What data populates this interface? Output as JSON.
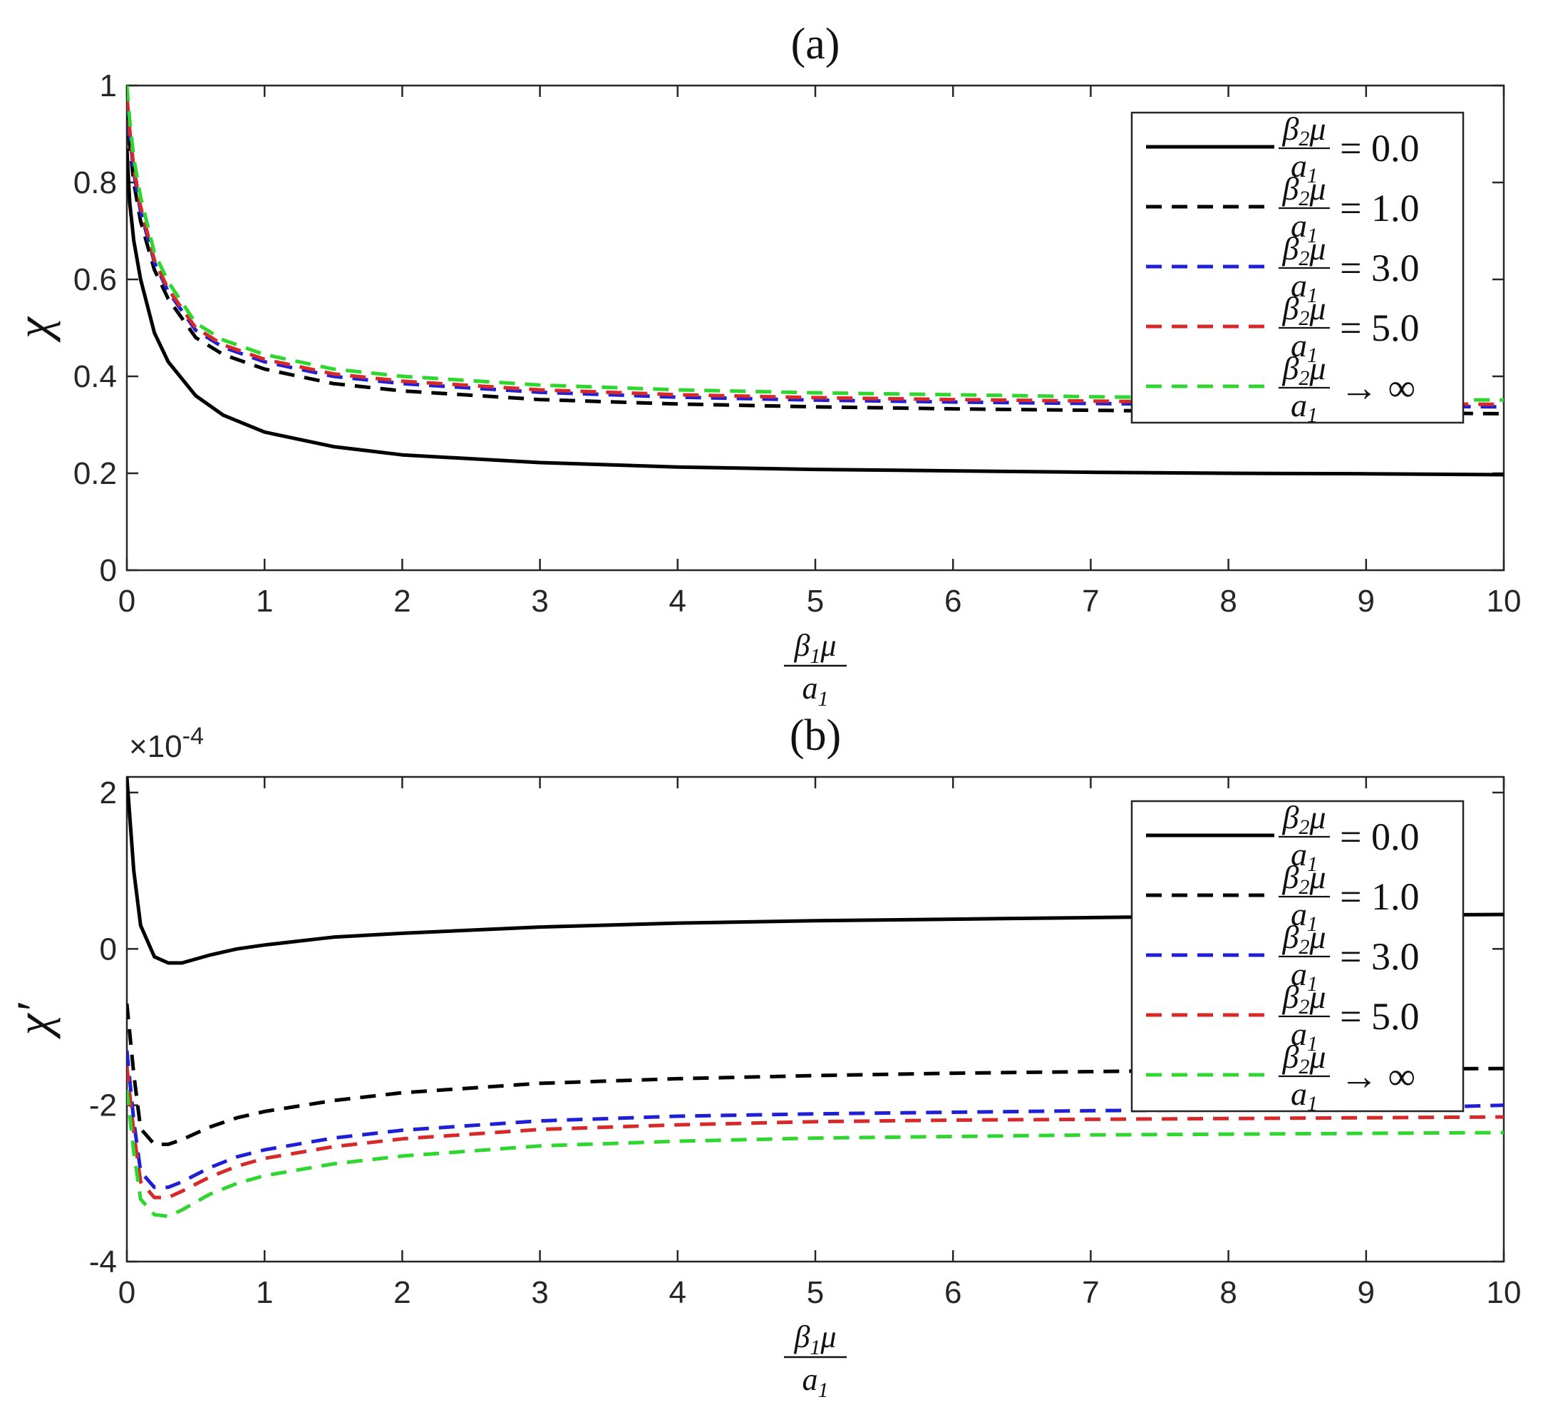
{
  "chart_data": [
    {
      "type": "line",
      "title": "(a)",
      "xlabel": "β1μ/a1",
      "xlabel_num": "β",
      "xlabel_num_sub": "1",
      "xlabel_num_rest": "μ",
      "xlabel_den": "a",
      "xlabel_den_sub": "1",
      "ylabel": "χ",
      "xlim": [
        0,
        10
      ],
      "ylim": [
        0,
        1
      ],
      "xticks": [
        "0",
        "1",
        "2",
        "3",
        "4",
        "5",
        "6",
        "7",
        "8",
        "9",
        "10"
      ],
      "yticks": [
        "0",
        "0.2",
        "0.4",
        "0.6",
        "0.8",
        "1"
      ],
      "exponent_label": "",
      "legend_position": "top-right",
      "series": [
        {
          "name": "β2μ/a1 = 0.0",
          "value_label": "= 0.0",
          "color": "#000000",
          "dash": "solid",
          "x": [
            0,
            0.02,
            0.05,
            0.1,
            0.2,
            0.3,
            0.5,
            0.7,
            1,
            1.5,
            2,
            3,
            4,
            5,
            6,
            7,
            8,
            9,
            10
          ],
          "y": [
            0.87,
            0.76,
            0.68,
            0.6,
            0.49,
            0.43,
            0.36,
            0.32,
            0.285,
            0.255,
            0.238,
            0.222,
            0.213,
            0.208,
            0.205,
            0.202,
            0.2,
            0.199,
            0.197
          ]
        },
        {
          "name": "β2μ/a1 = 1.0",
          "value_label": "= 1.0",
          "color": "#000000",
          "dash": "dashed",
          "x": [
            0,
            0.02,
            0.05,
            0.1,
            0.2,
            0.3,
            0.5,
            0.7,
            1,
            1.5,
            2,
            3,
            4,
            5,
            6,
            7,
            8,
            9,
            10
          ],
          "y": [
            0.95,
            0.88,
            0.8,
            0.72,
            0.62,
            0.56,
            0.48,
            0.445,
            0.415,
            0.385,
            0.37,
            0.352,
            0.343,
            0.337,
            0.333,
            0.33,
            0.327,
            0.325,
            0.323
          ]
        },
        {
          "name": "β2μ/a1 = 3.0",
          "value_label": "= 3.0",
          "color": "#1f1fd6",
          "dash": "dashed",
          "x": [
            0,
            0.02,
            0.05,
            0.1,
            0.2,
            0.3,
            0.5,
            0.7,
            1,
            1.5,
            2,
            3,
            4,
            5,
            6,
            7,
            8,
            9,
            10
          ],
          "y": [
            0.97,
            0.9,
            0.82,
            0.74,
            0.635,
            0.575,
            0.495,
            0.46,
            0.43,
            0.4,
            0.385,
            0.367,
            0.357,
            0.351,
            0.347,
            0.344,
            0.341,
            0.339,
            0.337
          ]
        },
        {
          "name": "β2μ/a1 = 5.0",
          "value_label": "= 5.0",
          "color": "#d62a2a",
          "dash": "dashed",
          "x": [
            0,
            0.02,
            0.05,
            0.1,
            0.2,
            0.3,
            0.5,
            0.7,
            1,
            1.5,
            2,
            3,
            4,
            5,
            6,
            7,
            8,
            9,
            10
          ],
          "y": [
            0.98,
            0.91,
            0.83,
            0.75,
            0.64,
            0.58,
            0.5,
            0.465,
            0.435,
            0.405,
            0.39,
            0.372,
            0.362,
            0.356,
            0.352,
            0.349,
            0.346,
            0.344,
            0.342
          ]
        },
        {
          "name": "β2μ/a1 → ∞",
          "value_label": "→ ∞",
          "color": "#2fd62f",
          "dash": "dashed",
          "x": [
            0,
            0.02,
            0.05,
            0.1,
            0.2,
            0.3,
            0.5,
            0.7,
            1,
            1.5,
            2,
            3,
            4,
            5,
            6,
            7,
            8,
            9,
            10
          ],
          "y": [
            1.0,
            0.93,
            0.85,
            0.77,
            0.655,
            0.595,
            0.51,
            0.475,
            0.445,
            0.415,
            0.4,
            0.382,
            0.372,
            0.366,
            0.362,
            0.358,
            0.355,
            0.353,
            0.351
          ]
        }
      ]
    },
    {
      "type": "line",
      "title": "(b)",
      "xlabel": "β1μ/a1",
      "xlabel_num": "β",
      "xlabel_num_sub": "1",
      "xlabel_num_rest": "μ",
      "xlabel_den": "a",
      "xlabel_den_sub": "1",
      "ylabel": "χ′",
      "xlim": [
        0,
        10
      ],
      "ylim": [
        -4,
        2.2
      ],
      "xticks": [
        "0",
        "1",
        "2",
        "3",
        "4",
        "5",
        "6",
        "7",
        "8",
        "9",
        "10"
      ],
      "yticks": [
        "-4",
        "-2",
        "0",
        "2"
      ],
      "exponent_label": "×10-4",
      "exponent_base": "×10",
      "exponent_power": "-4",
      "legend_position": "top-right",
      "series": [
        {
          "name": "β2μ/a1 = 0.0",
          "value_label": "= 0.0",
          "color": "#000000",
          "dash": "solid",
          "x": [
            0,
            0.05,
            0.1,
            0.2,
            0.3,
            0.4,
            0.6,
            0.8,
            1,
            1.5,
            2,
            3,
            4,
            5,
            6,
            7,
            8,
            9,
            10
          ],
          "y": [
            2.2,
            1.0,
            0.3,
            -0.1,
            -0.18,
            -0.18,
            -0.08,
            0.0,
            0.05,
            0.15,
            0.2,
            0.28,
            0.33,
            0.36,
            0.38,
            0.4,
            0.42,
            0.43,
            0.44
          ]
        },
        {
          "name": "β2μ/a1 = 1.0",
          "value_label": "= 1.0",
          "color": "#000000",
          "dash": "dashed",
          "x": [
            0,
            0.05,
            0.1,
            0.2,
            0.3,
            0.4,
            0.6,
            0.8,
            1,
            1.5,
            2,
            3,
            4,
            5,
            6,
            7,
            8,
            9,
            10
          ],
          "y": [
            -0.7,
            -1.6,
            -2.3,
            -2.5,
            -2.5,
            -2.44,
            -2.28,
            -2.16,
            -2.08,
            -1.94,
            -1.84,
            -1.72,
            -1.66,
            -1.62,
            -1.59,
            -1.57,
            -1.55,
            -1.54,
            -1.53
          ]
        },
        {
          "name": "β2μ/a1 = 3.0",
          "value_label": "= 3.0",
          "color": "#1f1fd6",
          "dash": "dashed",
          "x": [
            0,
            0.05,
            0.1,
            0.2,
            0.3,
            0.4,
            0.6,
            0.8,
            1,
            1.5,
            2,
            3,
            4,
            5,
            6,
            7,
            8,
            9,
            10
          ],
          "y": [
            -1.3,
            -2.2,
            -2.85,
            -3.05,
            -3.05,
            -2.98,
            -2.8,
            -2.66,
            -2.57,
            -2.42,
            -2.32,
            -2.2,
            -2.14,
            -2.11,
            -2.09,
            -2.07,
            -2.06,
            -2.05,
            -2.0
          ]
        },
        {
          "name": "β2μ/a1 = 5.0",
          "value_label": "= 5.0",
          "color": "#d62a2a",
          "dash": "dashed",
          "x": [
            0,
            0.05,
            0.1,
            0.2,
            0.3,
            0.4,
            0.6,
            0.8,
            1,
            1.5,
            2,
            3,
            4,
            5,
            6,
            7,
            8,
            9,
            10
          ],
          "y": [
            -1.5,
            -2.35,
            -2.98,
            -3.18,
            -3.18,
            -3.1,
            -2.92,
            -2.78,
            -2.68,
            -2.53,
            -2.43,
            -2.31,
            -2.25,
            -2.21,
            -2.19,
            -2.18,
            -2.17,
            -2.16,
            -2.15
          ]
        },
        {
          "name": "β2μ/a1 → ∞",
          "value_label": "→ ∞",
          "color": "#2fd62f",
          "dash": "dashed",
          "x": [
            0,
            0.05,
            0.1,
            0.2,
            0.3,
            0.4,
            0.6,
            0.8,
            1,
            1.5,
            2,
            3,
            4,
            5,
            6,
            7,
            8,
            9,
            10
          ],
          "y": [
            -1.8,
            -2.6,
            -3.2,
            -3.4,
            -3.42,
            -3.34,
            -3.14,
            -3.0,
            -2.9,
            -2.75,
            -2.65,
            -2.52,
            -2.46,
            -2.42,
            -2.4,
            -2.38,
            -2.37,
            -2.36,
            -2.35
          ]
        }
      ]
    }
  ]
}
